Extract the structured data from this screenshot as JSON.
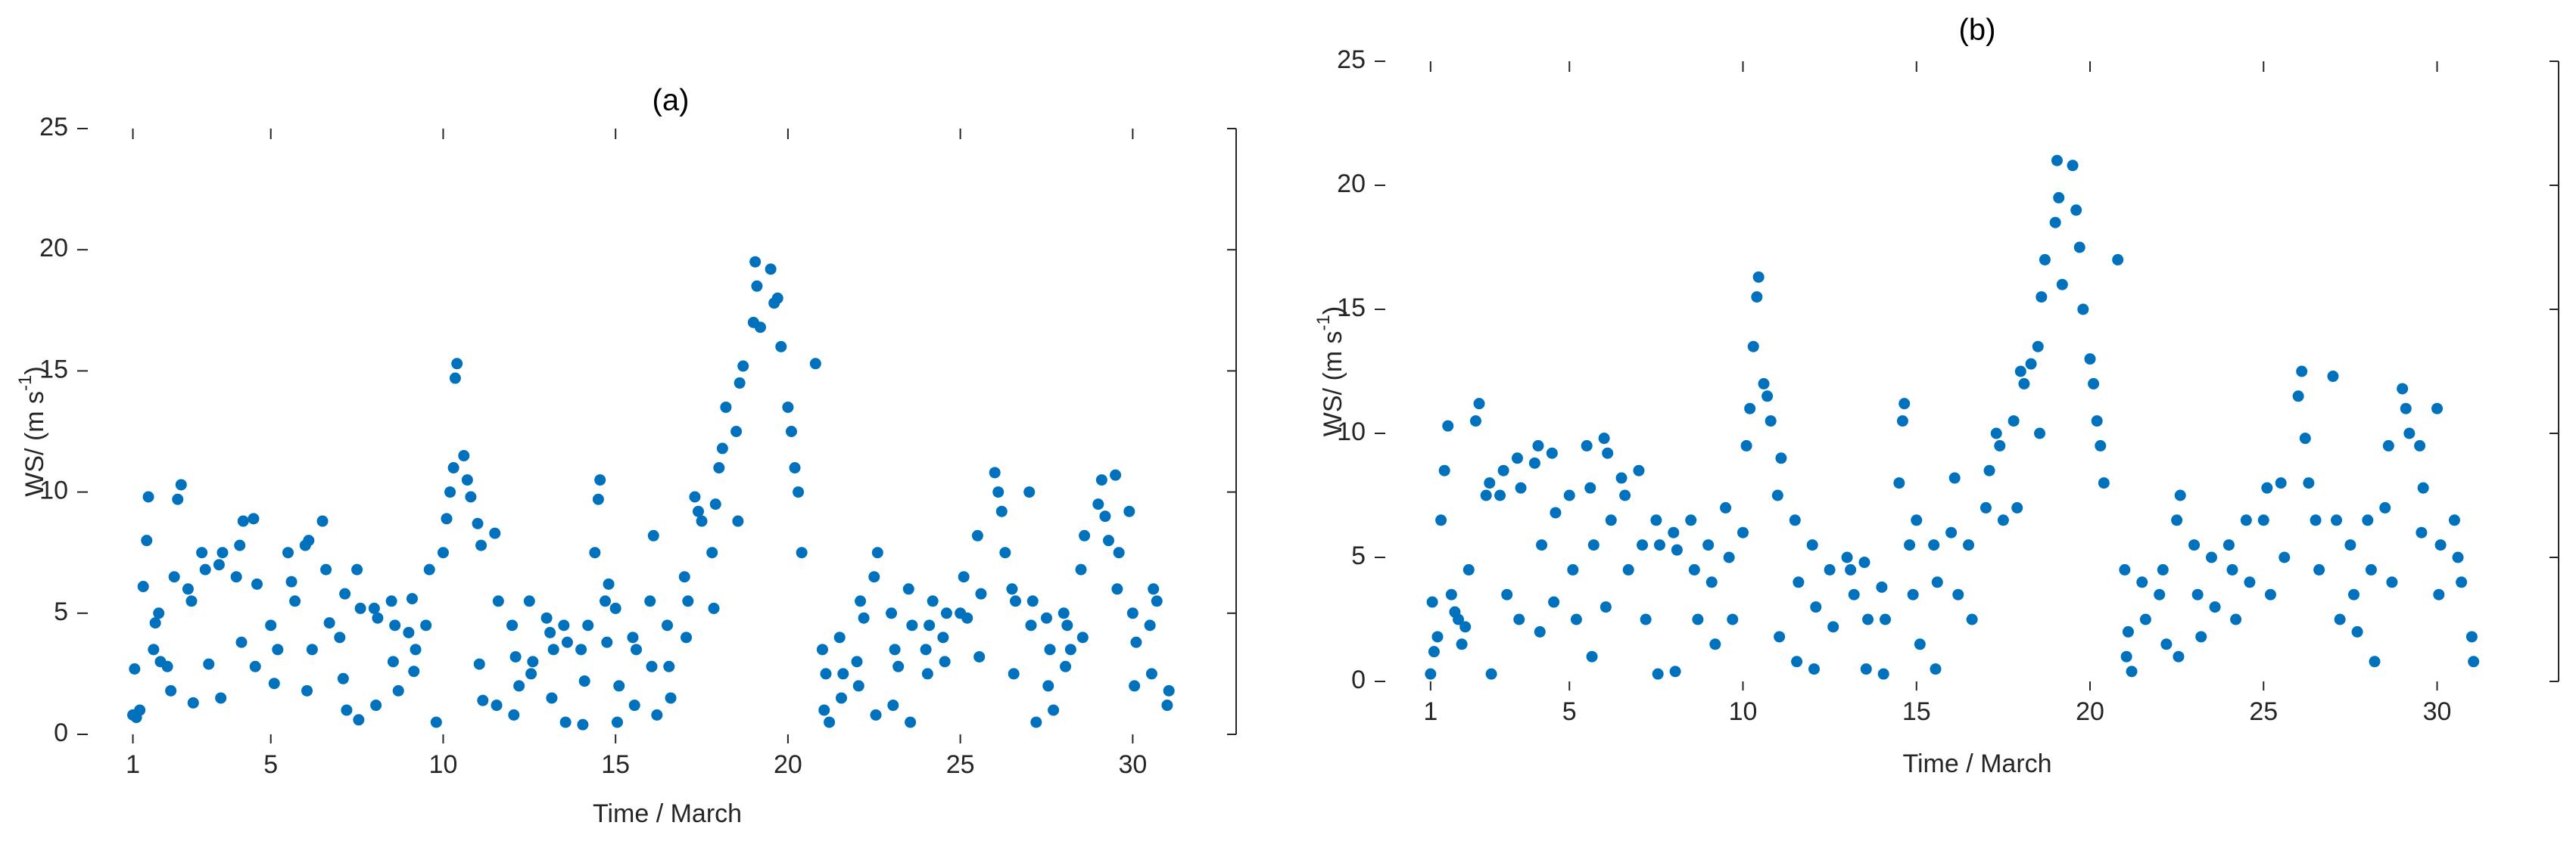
{
  "chart_data": [
    {
      "type": "scatter",
      "title": "(a)",
      "xlabel": "Time / March",
      "ylabel": {
        "text": "WS/ (m s",
        "superscript": "-1",
        "suffix": ")"
      },
      "color": "#0072BD",
      "xlim": [
        0,
        33
      ],
      "ylim": [
        0,
        25
      ],
      "xticks": [
        1,
        5,
        10,
        15,
        20,
        25,
        30
      ],
      "yticks": [
        0,
        5,
        10,
        15,
        20,
        25
      ],
      "x": [
        1,
        1.1,
        1.05,
        1.2,
        1.3,
        1.4,
        1.45,
        1.6,
        1.65,
        1.75,
        1.8,
        2.0,
        2.1,
        2.2,
        2.3,
        2.4,
        2.6,
        2.7,
        2.75,
        3.0,
        3.1,
        3.2,
        3.5,
        3.6,
        3.55,
        4.0,
        4.1,
        4.2,
        4.15,
        4.5,
        4.6,
        4.55,
        5.0,
        5.1,
        5.2,
        5.5,
        5.6,
        5.7,
        6.0,
        6.1,
        6.05,
        6.2,
        6.5,
        6.6,
        6.7,
        7.0,
        7.1,
        7.2,
        7.15,
        7.5,
        7.6,
        7.55,
        8.0,
        8.1,
        8.05,
        8.5,
        8.6,
        8.55,
        8.7,
        9.0,
        9.1,
        9.2,
        9.15,
        9.5,
        9.6,
        9.8,
        10.0,
        10.1,
        10.2,
        10.3,
        10.35,
        10.4,
        10.6,
        10.7,
        10.8,
        11.0,
        11.1,
        11.05,
        11.15,
        11.5,
        11.6,
        11.55,
        12.0,
        12.1,
        12.05,
        12.2,
        12.5,
        12.6,
        12.55,
        13.0,
        13.1,
        13.2,
        13.15,
        13.5,
        13.6,
        13.55,
        14.0,
        14.1,
        14.2,
        14.05,
        14.4,
        14.5,
        14.55,
        14.7,
        14.8,
        14.75,
        15.0,
        15.1,
        15.05,
        15.5,
        15.6,
        15.55,
        16.0,
        16.1,
        16.05,
        16.2,
        16.5,
        16.6,
        16.55,
        17.0,
        17.1,
        17.05,
        17.3,
        17.4,
        17.5,
        17.8,
        17.85,
        17.9,
        18.0,
        18.1,
        18.2,
        18.5,
        18.6,
        18.7,
        18.55,
        19.0,
        19.05,
        19.1,
        19.2,
        19.5,
        19.6,
        19.7,
        19.8,
        20.0,
        20.1,
        20.2,
        20.3,
        20.4,
        20.8,
        21.0,
        21.1,
        21.05,
        21.2,
        21.5,
        21.6,
        21.55,
        22.0,
        22.1,
        22.2,
        22.05,
        22.5,
        22.6,
        22.55,
        23.0,
        23.1,
        23.2,
        23.05,
        23.5,
        23.6,
        23.55,
        24.0,
        24.1,
        24.2,
        24.05,
        24.5,
        24.6,
        24.55,
        25.0,
        25.1,
        25.2,
        25.5,
        25.6,
        25.55,
        26.0,
        26.1,
        26.2,
        26.3,
        26.5,
        26.6,
        26.55,
        27.0,
        27.1,
        27.05,
        27.2,
        27.5,
        27.6,
        27.55,
        27.7,
        28.0,
        28.1,
        28.05,
        28.2,
        28.5,
        28.6,
        28.55,
        29.0,
        29.1,
        29.2,
        29.3,
        29.5,
        29.6,
        29.55,
        30.0,
        30.1,
        30.05,
        29.9,
        30.5,
        30.6,
        30.7,
        30.55,
        31.0,
        31.05
      ],
      "values": [
        0.8,
        0.7,
        2.7,
        1.0,
        6.1,
        8,
        9.8,
        3.5,
        4.6,
        5,
        3,
        2.8,
        1.8,
        6.5,
        9.7,
        10.3,
        6,
        5.5,
        1.3,
        7.5,
        6.8,
        2.9,
        7,
        7.5,
        1.5,
        6.5,
        7.8,
        8.8,
        3.8,
        8.9,
        6.2,
        2.8,
        4.5,
        2.1,
        3.5,
        7.5,
        6.3,
        5.5,
        7.8,
        8,
        1.8,
        3.5,
        8.8,
        6.8,
        4.6,
        4,
        2.3,
        1,
        5.8,
        6.8,
        5.2,
        0.6,
        5.2,
        4.8,
        1.2,
        5.5,
        4.5,
        3,
        1.8,
        4.2,
        5.6,
        3.5,
        2.6,
        4.5,
        6.8,
        0.5,
        7.5,
        8.9,
        10,
        11,
        14.7,
        15.3,
        11.5,
        10.5,
        9.8,
        8.7,
        7.8,
        2.9,
        1.4,
        8.3,
        5.5,
        1.2,
        4.5,
        3.2,
        0.8,
        2,
        5.5,
        3,
        2.5,
        4.8,
        4.2,
        3.5,
        1.5,
        4.5,
        3.8,
        0.5,
        3.5,
        2.2,
        4.5,
        0.4,
        7.5,
        9.7,
        10.5,
        5.5,
        6.2,
        3.8,
        5.2,
        2,
        0.5,
        4,
        3.5,
        1.2,
        5.5,
        8.2,
        2.8,
        0.8,
        4.5,
        1.5,
        2.8,
        6.5,
        5.5,
        4,
        9.8,
        9.2,
        8.8,
        7.5,
        5.2,
        9.5,
        11,
        11.8,
        13.5,
        12.5,
        14.5,
        15.2,
        8.8,
        17,
        19.5,
        18.5,
        16.8,
        19.2,
        17.8,
        18,
        16,
        13.5,
        12.5,
        11,
        10,
        7.5,
        15.3,
        3.5,
        2.5,
        1,
        0.5,
        4,
        2.5,
        1.5,
        3,
        5.5,
        4.8,
        2,
        6.5,
        7.5,
        0.8,
        5,
        3.5,
        2.8,
        1.2,
        6,
        4.5,
        0.5,
        3.5,
        4.5,
        5.5,
        2.5,
        4,
        5,
        3,
        5,
        6.5,
        4.8,
        8.2,
        5.8,
        3.2,
        10.8,
        10,
        9.2,
        7.5,
        6,
        5.5,
        2.5,
        10,
        5.5,
        4.5,
        0.5,
        4.8,
        3.5,
        2,
        1,
        5,
        4.5,
        2.8,
        3.5,
        6.8,
        8.2,
        4,
        9.5,
        10.5,
        9,
        8,
        10.7,
        7.5,
        6,
        5,
        3.8,
        2,
        9.2,
        4.5,
        6,
        5.5,
        2.5,
        1.2,
        1.8
      ]
    },
    {
      "type": "scatter",
      "title": "(b)",
      "xlabel": "Time / March",
      "ylabel": {
        "text": "WS/ (m s",
        "superscript": "-1",
        "suffix": ")"
      },
      "color": "#0072BD",
      "xlim": [
        0,
        33.5
      ],
      "ylim": [
        0,
        25
      ],
      "xticks": [
        1,
        5,
        10,
        15,
        20,
        25,
        30
      ],
      "yticks": [
        0,
        5,
        10,
        15,
        20,
        25
      ],
      "x": [
        1.0,
        1.1,
        1.05,
        1.2,
        1.3,
        1.4,
        1.5,
        1.6,
        1.7,
        1.8,
        1.9,
        2.0,
        2.1,
        2.3,
        2.4,
        2.6,
        2.7,
        2.75,
        3.0,
        3.1,
        3.2,
        3.5,
        3.6,
        3.55,
        4.0,
        4.1,
        4.2,
        4.15,
        4.5,
        4.6,
        4.55,
        5.0,
        5.1,
        5.2,
        5.5,
        5.6,
        5.7,
        5.65,
        6.0,
        6.1,
        6.2,
        6.05,
        6.5,
        6.6,
        6.7,
        7.0,
        7.1,
        7.2,
        7.5,
        7.6,
        7.55,
        8.0,
        8.1,
        8.05,
        8.5,
        8.6,
        8.7,
        9.0,
        9.1,
        9.2,
        9.5,
        9.6,
        9.7,
        10.0,
        10.1,
        10.2,
        10.3,
        10.4,
        10.45,
        10.6,
        10.7,
        10.8,
        11.0,
        11.1,
        11.05,
        11.5,
        11.6,
        11.55,
        12.0,
        12.1,
        12.05,
        12.5,
        12.6,
        13.0,
        13.1,
        13.2,
        13.5,
        13.6,
        13.55,
        14.0,
        14.1,
        14.05,
        14.5,
        14.6,
        14.65,
        14.8,
        14.9,
        15.0,
        15.1,
        15.5,
        15.6,
        15.55,
        16.0,
        16.1,
        16.2,
        16.5,
        16.6,
        17.0,
        17.1,
        17.3,
        17.4,
        17.5,
        17.8,
        17.9,
        18.0,
        18.1,
        18.3,
        18.5,
        18.6,
        18.7,
        18.55,
        19.0,
        19.05,
        19.1,
        19.2,
        19.5,
        19.6,
        19.7,
        19.8,
        20.0,
        20.1,
        20.2,
        20.3,
        20.4,
        20.8,
        21.0,
        21.1,
        21.05,
        21.2,
        21.5,
        21.6,
        22.0,
        22.1,
        22.2,
        22.5,
        22.6,
        22.55,
        23.0,
        23.1,
        23.2,
        23.5,
        23.6,
        24.0,
        24.1,
        24.2,
        24.5,
        24.6,
        25.0,
        25.1,
        25.2,
        25.5,
        25.6,
        26.0,
        26.1,
        26.2,
        26.3,
        26.5,
        26.6,
        27.0,
        27.1,
        27.2,
        27.5,
        27.6,
        27.7,
        28.0,
        28.1,
        28.2,
        28.5,
        28.6,
        28.7,
        29.0,
        29.1,
        29.2,
        29.5,
        29.6,
        29.55,
        30.0,
        30.1,
        30.05,
        30.5,
        30.6,
        30.7,
        31.0,
        31.05
      ],
      "values": [
        0.3,
        1.2,
        3.2,
        1.8,
        6.5,
        8.5,
        10.3,
        3.5,
        2.8,
        2.5,
        1.5,
        2.2,
        4.5,
        10.5,
        11.2,
        7.5,
        8,
        0.3,
        7.5,
        8.5,
        3.5,
        9,
        7.8,
        2.5,
        8.8,
        9.5,
        5.5,
        2,
        9.2,
        6.8,
        3.2,
        7.5,
        4.5,
        2.5,
        9.5,
        7.8,
        5.5,
        1,
        9.8,
        9.2,
        6.5,
        3,
        8.2,
        7.5,
        4.5,
        8.5,
        5.5,
        2.5,
        6.5,
        5.5,
        0.3,
        6,
        5.3,
        0.4,
        6.5,
        4.5,
        2.5,
        5.5,
        4,
        1.5,
        7,
        5,
        2.5,
        6,
        9.5,
        11,
        13.5,
        15.5,
        16.3,
        12,
        11.5,
        10.5,
        7.5,
        9,
        1.8,
        6.5,
        4,
        0.8,
        5.5,
        3,
        0.5,
        4.5,
        2.2,
        5,
        4.5,
        3.5,
        4.8,
        2.5,
        0.5,
        3.8,
        2.5,
        0.3,
        8,
        10.5,
        11.2,
        5.5,
        3.5,
        6.5,
        1.5,
        5.5,
        4,
        0.5,
        6,
        8.2,
        3.5,
        5.5,
        2.5,
        7,
        8.5,
        10,
        9.5,
        6.5,
        10.5,
        7,
        12.5,
        12,
        12.8,
        13.5,
        15.5,
        17,
        10,
        18.5,
        21,
        19.5,
        16,
        20.8,
        19,
        17.5,
        15,
        13,
        12,
        10.5,
        9.5,
        8,
        17,
        4.5,
        2,
        1,
        0.4,
        4,
        2.5,
        3.5,
        4.5,
        1.5,
        6.5,
        7.5,
        1,
        5.5,
        3.5,
        1.8,
        5,
        3,
        5.5,
        4.5,
        2.5,
        6.5,
        4,
        6.5,
        7.8,
        3.5,
        8,
        5,
        11.5,
        12.5,
        9.8,
        8,
        6.5,
        4.5,
        12.3,
        6.5,
        2.5,
        5.5,
        3.5,
        2,
        6.5,
        4.5,
        0.8,
        7,
        9.5,
        4,
        11.8,
        11,
        10,
        9.5,
        7.8,
        6,
        11,
        5.5,
        3.5,
        6.5,
        5,
        4,
        1.8,
        0.8
      ]
    }
  ]
}
